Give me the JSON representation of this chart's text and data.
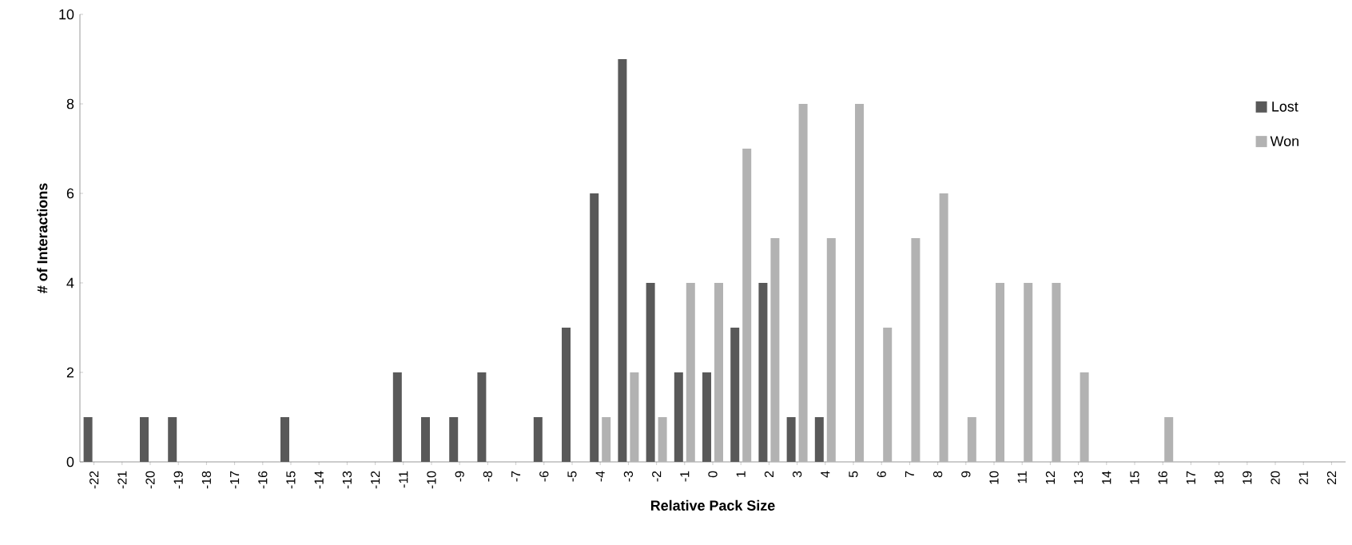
{
  "chart_data": {
    "type": "bar",
    "xlabel": "Relative Pack Size",
    "ylabel": "# of Interactions",
    "categories": [
      "-22",
      "-21",
      "-20",
      "-19",
      "-18",
      "-17",
      "-16",
      "-15",
      "-14",
      "-13",
      "-12",
      "-11",
      "-10",
      "-9",
      "-8",
      "-7",
      "-6",
      "-5",
      "-4",
      "-3",
      "-2",
      "-1",
      "0",
      "1",
      "2",
      "3",
      "4",
      "5",
      "6",
      "7",
      "8",
      "9",
      "10",
      "11",
      "12",
      "13",
      "14",
      "15",
      "16",
      "17",
      "18",
      "19",
      "20",
      "21",
      "22"
    ],
    "series": [
      {
        "name": "Lost",
        "color": "#595959",
        "values": [
          1,
          0,
          1,
          1,
          0,
          0,
          0,
          1,
          0,
          0,
          0,
          2,
          1,
          1,
          2,
          0,
          1,
          3,
          6,
          9,
          4,
          2,
          2,
          3,
          4,
          1,
          1,
          0,
          0,
          0,
          0,
          0,
          0,
          0,
          0,
          0,
          0,
          0,
          0,
          0,
          0,
          0,
          0,
          0,
          0
        ]
      },
      {
        "name": "Won",
        "color": "#b2b2b2",
        "values": [
          0,
          0,
          0,
          0,
          0,
          0,
          0,
          0,
          0,
          0,
          0,
          0,
          0,
          0,
          0,
          0,
          0,
          0,
          1,
          2,
          1,
          4,
          4,
          7,
          5,
          8,
          5,
          8,
          3,
          5,
          6,
          1,
          4,
          4,
          4,
          2,
          0,
          0,
          1,
          0,
          0,
          0,
          0,
          0,
          0
        ]
      }
    ],
    "ylim": [
      0,
      10
    ],
    "yticks": [
      0,
      2,
      4,
      6,
      8,
      10
    ],
    "grid": false,
    "legend": "top right"
  }
}
